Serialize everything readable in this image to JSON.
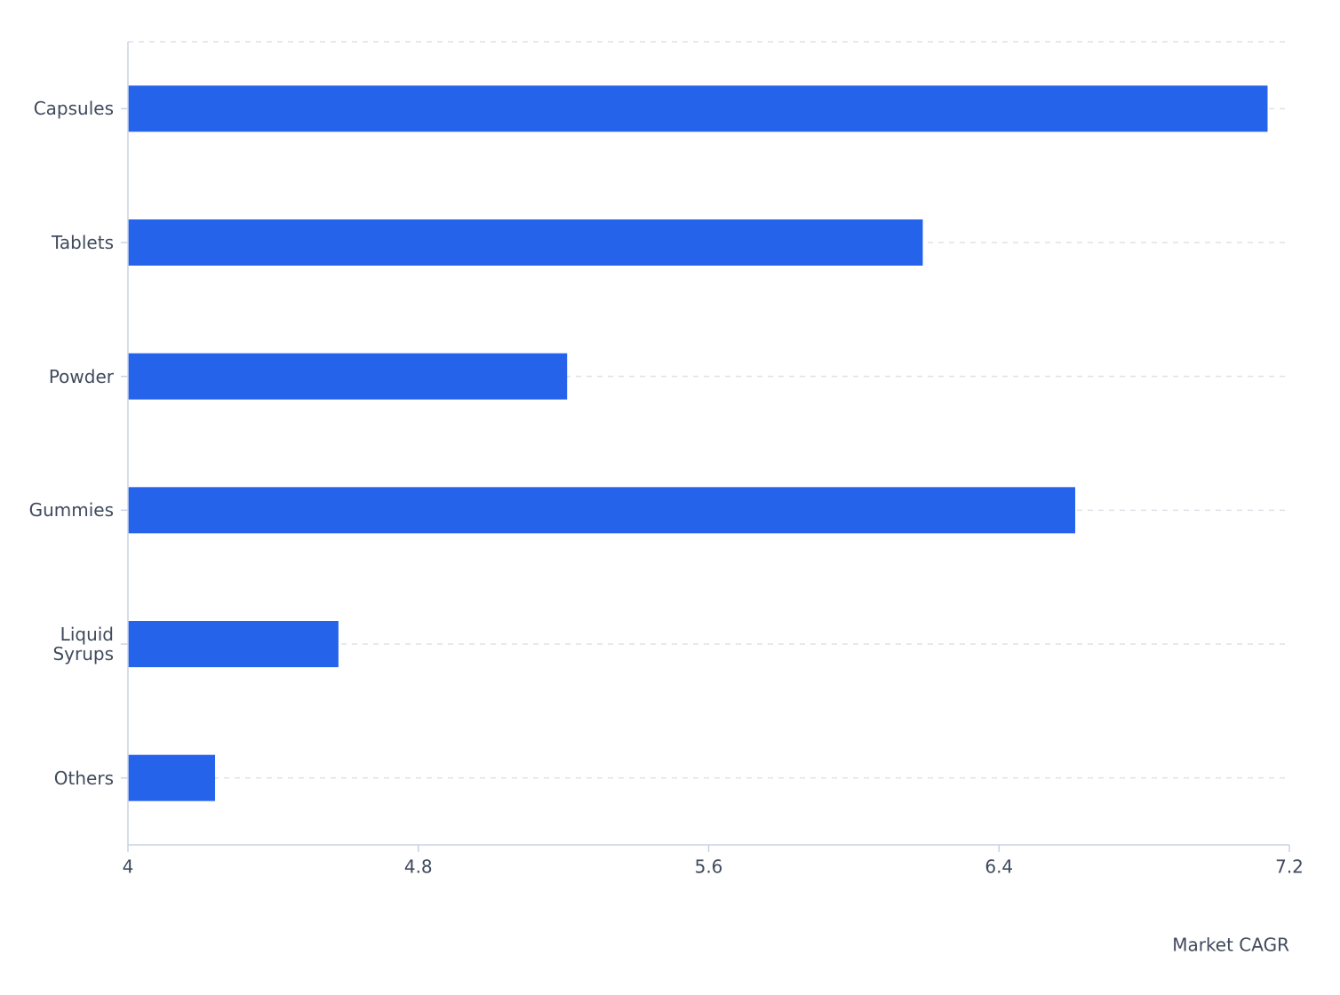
{
  "chart_data": {
    "type": "bar",
    "orientation": "horizontal",
    "categories": [
      "Capsules",
      "Tablets",
      "Powder",
      "Gummies",
      "Liquid Syrups",
      "Others"
    ],
    "values": [
      7.14,
      6.19,
      5.21,
      6.61,
      4.58,
      4.24
    ],
    "color": "#2563eb",
    "x_label": "Market CAGR",
    "xlim": [
      4,
      7.2
    ],
    "xticks": [
      4,
      4.8,
      5.6,
      6.4,
      7.2
    ],
    "grid": true
  }
}
